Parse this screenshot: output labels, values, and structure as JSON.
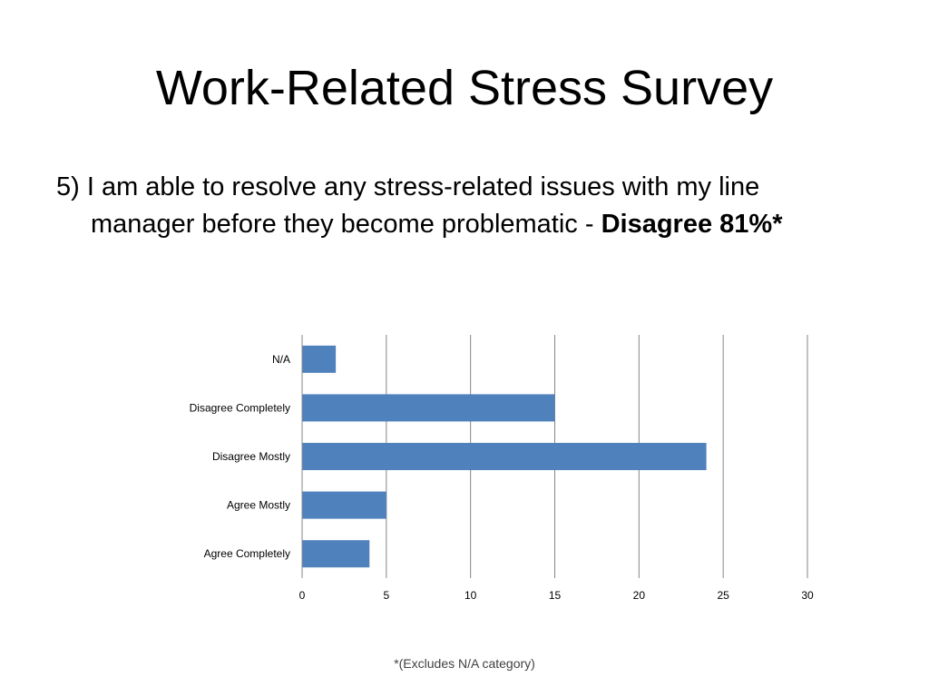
{
  "slide": {
    "title": "Work-Related Stress Survey",
    "question_line1": "5) I am able to resolve any stress-related issues with my line",
    "question_line2": "manager before they become problematic - ",
    "question_emphasis": "Disagree 81%*",
    "footnote": "*(Excludes N/A category)"
  },
  "chart_data": {
    "type": "bar",
    "orientation": "horizontal",
    "categories": [
      "N/A",
      "Disagree Completely",
      "Disagree Mostly",
      "Agree Mostly",
      "Agree Completely"
    ],
    "values": [
      2,
      15,
      24,
      5,
      4
    ],
    "xlim": [
      0,
      30
    ],
    "xticks": [
      0,
      5,
      10,
      15,
      20,
      25,
      30
    ],
    "grid": true,
    "bar_color": "#4f81bd",
    "title": "",
    "xlabel": "",
    "ylabel": ""
  }
}
